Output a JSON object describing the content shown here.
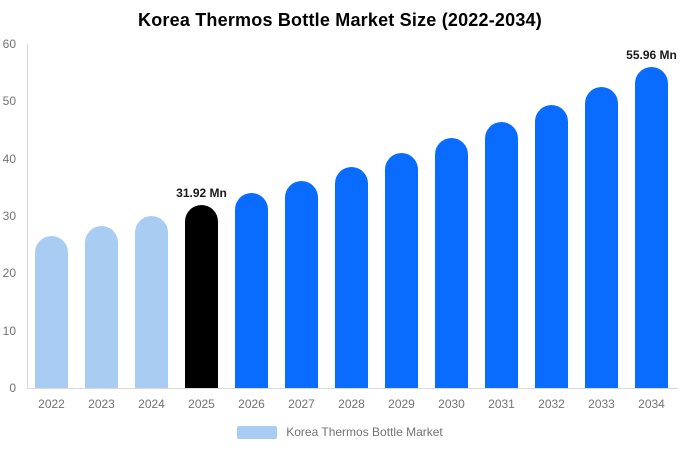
{
  "title": "Korea Thermos Bottle Market Size (2022-2034)",
  "legend": {
    "label": "Korea Thermos Bottle Market",
    "swatch_color": "#a9cdf2"
  },
  "colors": {
    "background": "#ffffff",
    "historical_bar": "#a9cdf2",
    "base_year_bar": "#000000",
    "forecast_bar": "#0a6cff",
    "axis_line": "#d9d9d9",
    "tick_text": "#737373",
    "annotation_text": "#1a1a1a",
    "title_text": "#000000"
  },
  "chart_data": {
    "type": "bar",
    "title": "Korea Thermos Bottle Market Size (2022-2034)",
    "unit": "Mn",
    "categories": [
      "2022",
      "2023",
      "2024",
      "2025",
      "2026",
      "2027",
      "2028",
      "2029",
      "2030",
      "2031",
      "2032",
      "2033",
      "2034"
    ],
    "values": [
      26.47,
      28.18,
      29.99,
      31.92,
      33.98,
      36.16,
      38.49,
      40.97,
      43.61,
      46.42,
      49.41,
      52.58,
      55.96
    ],
    "color_roles": [
      "historical",
      "historical",
      "historical",
      "base_year",
      "forecast",
      "forecast",
      "forecast",
      "forecast",
      "forecast",
      "forecast",
      "forecast",
      "forecast",
      "forecast"
    ],
    "annotations": [
      {
        "category": "2025",
        "text": "31.92 Mn"
      },
      {
        "category": "2034",
        "text": "55.96 Mn"
      }
    ],
    "xlabel": "",
    "ylabel": "",
    "ylim": [
      0,
      60
    ],
    "yticks": [
      0,
      10,
      20,
      30,
      40,
      50,
      60
    ],
    "grid": false,
    "legend_position": "bottom",
    "legend_entries": [
      "Korea Thermos Bottle Market"
    ]
  }
}
